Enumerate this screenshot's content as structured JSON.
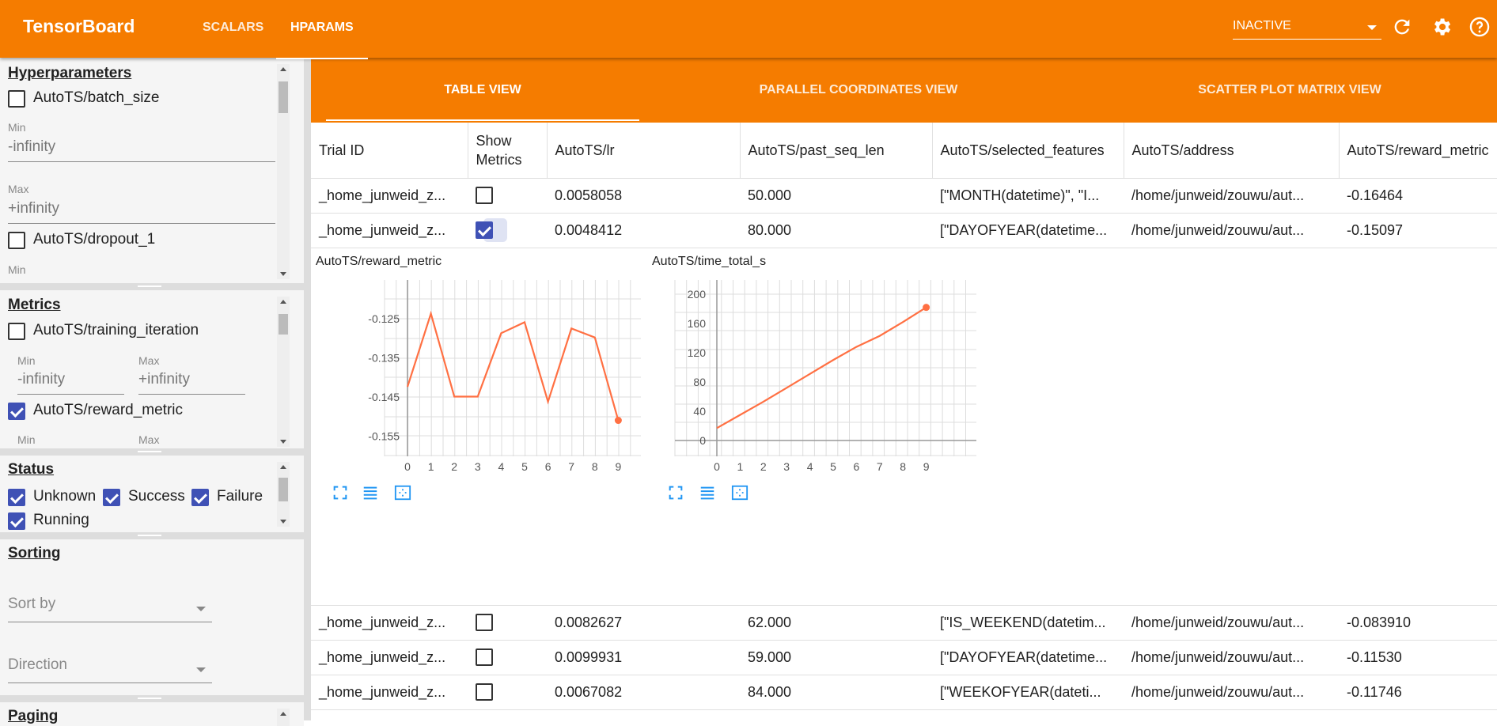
{
  "header": {
    "title": "TensorBoard",
    "tabs": [
      {
        "label": "SCALARS",
        "active": false
      },
      {
        "label": "HPARAMS",
        "active": true
      }
    ],
    "run_selector": "INACTIVE",
    "icons": [
      "refresh-icon",
      "settings-icon",
      "help-icon"
    ],
    "color": "#f57c00"
  },
  "sidebar": {
    "hyperparameters": {
      "title": "Hyperparameters",
      "items": [
        {
          "label": "AutoTS/batch_size",
          "checked": false,
          "min_label": "Min",
          "min": "-infinity",
          "max_label": "Max",
          "max": "+infinity"
        },
        {
          "label": "AutoTS/dropout_1",
          "checked": false,
          "min_label": "Min"
        }
      ]
    },
    "metrics": {
      "title": "Metrics",
      "items": [
        {
          "label": "AutoTS/training_iteration",
          "checked": false,
          "min_label": "Min",
          "min": "-infinity",
          "max_label": "Max",
          "max": "+infinity"
        },
        {
          "label": "AutoTS/reward_metric",
          "checked": true,
          "min_label": "Min",
          "max_label": "Max"
        }
      ]
    },
    "status": {
      "title": "Status",
      "items": [
        {
          "label": "Unknown",
          "checked": true
        },
        {
          "label": "Success",
          "checked": true
        },
        {
          "label": "Failure",
          "checked": true
        },
        {
          "label": "Running",
          "checked": true
        }
      ]
    },
    "sorting": {
      "title": "Sorting",
      "sort_by": "Sort by",
      "direction": "Direction"
    },
    "paging": {
      "title": "Paging"
    }
  },
  "view_tabs": [
    {
      "label": "TABLE VIEW",
      "active": true
    },
    {
      "label": "PARALLEL COORDINATES VIEW",
      "active": false
    },
    {
      "label": "SCATTER PLOT MATRIX VIEW",
      "active": false
    }
  ],
  "table": {
    "columns": [
      "Trial ID",
      "Show Metrics",
      "AutoTS/lr",
      "AutoTS/past_seq_len",
      "AutoTS/selected_features",
      "AutoTS/address",
      "AutoTS/reward_metric"
    ],
    "rows": [
      {
        "trial": "_home_junweid_z...",
        "show": false,
        "lr": "0.0058058",
        "past_seq_len": "50.000",
        "features": "[\"MONTH(datetime)\", \"I...",
        "address": "/home/junweid/zouwu/aut...",
        "reward": "-0.16464"
      },
      {
        "trial": "_home_junweid_z...",
        "show": true,
        "lr": "0.0048412",
        "past_seq_len": "80.000",
        "features": "[\"DAYOFYEAR(datetime...",
        "address": "/home/junweid/zouwu/aut...",
        "reward": "-0.15097"
      },
      {
        "trial": "_home_junweid_z...",
        "show": false,
        "lr": "0.0082627",
        "past_seq_len": "62.000",
        "features": "[\"IS_WEEKEND(datetim...",
        "address": "/home/junweid/zouwu/aut...",
        "reward": "-0.083910"
      },
      {
        "trial": "_home_junweid_z...",
        "show": false,
        "lr": "0.0099931",
        "past_seq_len": "59.000",
        "features": "[\"DAYOFYEAR(datetime...",
        "address": "/home/junweid/zouwu/aut...",
        "reward": "-0.11530"
      },
      {
        "trial": "_home_junweid_z...",
        "show": false,
        "lr": "0.0067082",
        "past_seq_len": "84.000",
        "features": "[\"WEEKOFYEAR(dateti...",
        "address": "/home/junweid/zouwu/aut...",
        "reward": "-0.11746"
      }
    ]
  },
  "chart_data": [
    {
      "type": "line",
      "title": "AutoTS/reward_metric",
      "x": [
        0,
        1,
        2,
        3,
        4,
        5,
        6,
        7,
        8,
        9
      ],
      "y": [
        -0.1424,
        -0.1237,
        -0.1449,
        -0.1449,
        -0.1287,
        -0.1259,
        -0.1462,
        -0.1275,
        -0.1298,
        -0.15097
      ],
      "xticks": [
        "0",
        "1",
        "2",
        "3",
        "4",
        "5",
        "6",
        "7",
        "8",
        "9"
      ],
      "yticks": [
        "-0.125",
        "-0.135",
        "-0.145",
        "-0.155"
      ],
      "ytick_values": [
        -0.125,
        -0.135,
        -0.145,
        -0.155
      ],
      "grid": true,
      "color": "#ff7043"
    },
    {
      "type": "line",
      "title": "AutoTS/time_total_s",
      "x": [
        0,
        1,
        2,
        3,
        4,
        5,
        6,
        7,
        8,
        9
      ],
      "y": [
        17,
        35,
        53,
        72,
        91,
        110,
        128,
        143,
        162,
        182
      ],
      "xticks": [
        "0",
        "1",
        "2",
        "3",
        "4",
        "5",
        "6",
        "7",
        "8",
        "9"
      ],
      "yticks": [
        "200",
        "160",
        "120",
        "80",
        "40",
        "0"
      ],
      "ytick_values": [
        200,
        160,
        120,
        80,
        40,
        0
      ],
      "grid": true,
      "color": "#ff7043"
    }
  ],
  "chart_icons": [
    "fullscreen-icon",
    "toggle-y-log-icon",
    "fit-domain-icon"
  ]
}
